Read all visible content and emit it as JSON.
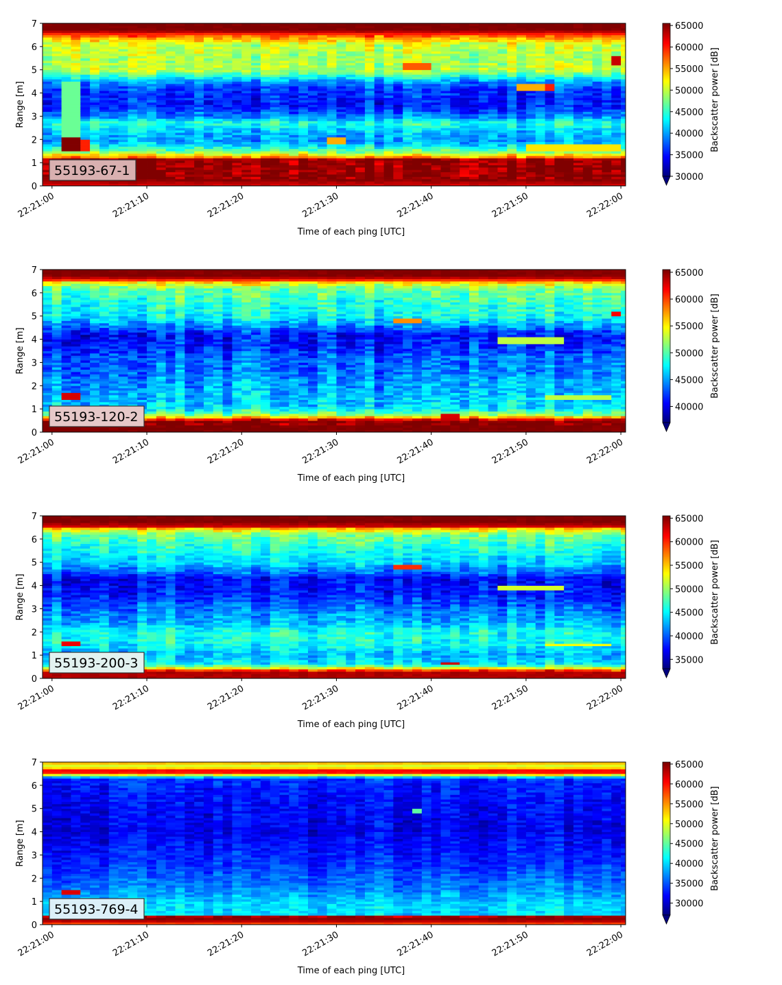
{
  "chart_data": [
    {
      "type": "heatmap",
      "label": "55193-67-1",
      "label_box_color": "#d9b0b0",
      "xlabel": "Time of each ping [UTC]",
      "ylabel": "Range [m]",
      "x_start": "22:21:00",
      "x_end": "22:22:00",
      "x_ticks": [
        "22:21:00",
        "22:21:10",
        "22:21:20",
        "22:21:30",
        "22:21:40",
        "22:21:50",
        "22:22:00"
      ],
      "ylim": [
        0,
        7
      ],
      "y_ticks": [
        0,
        1,
        2,
        3,
        4,
        5,
        6,
        7
      ],
      "colorbar": {
        "label": "Backscatter power [dB]",
        "range": [
          30000,
          65500
        ],
        "ticks": [
          30000,
          35000,
          40000,
          45000,
          50000,
          55000,
          60000,
          65000
        ],
        "extend": "min"
      },
      "profile": [
        [
          0.0,
          62000
        ],
        [
          0.25,
          65000
        ],
        [
          1.15,
          64500
        ],
        [
          1.25,
          56000
        ],
        [
          1.5,
          47000
        ],
        [
          1.9,
          40000
        ],
        [
          2.3,
          41000
        ],
        [
          2.7,
          45000
        ],
        [
          3.0,
          39000
        ],
        [
          3.5,
          35000
        ],
        [
          4.2,
          36500
        ],
        [
          4.5,
          40000
        ],
        [
          5.0,
          50000
        ],
        [
          5.5,
          49000
        ],
        [
          6.1,
          50500
        ],
        [
          6.4,
          56000
        ],
        [
          6.55,
          60000
        ],
        [
          6.7,
          65500
        ],
        [
          7.0,
          65500
        ]
      ],
      "features": [
        {
          "t0": 1.5,
          "t1": 3.0,
          "r0": 1.5,
          "r1": 2.1,
          "value": 65500
        },
        {
          "t0": 3.0,
          "t1": 4.0,
          "r0": 1.5,
          "r1": 2.0,
          "value": 60000
        },
        {
          "t0": 1.5,
          "t1": 3.0,
          "r0": 2.1,
          "r1": 4.5,
          "value": 47000
        },
        {
          "t0": 29.5,
          "t1": 31.5,
          "r0": 1.8,
          "r1": 2.1,
          "value": 55000
        },
        {
          "t0": 37.0,
          "t1": 40.0,
          "r0": 5.0,
          "r1": 5.3,
          "value": 58000
        },
        {
          "t0": 49.0,
          "t1": 53.0,
          "r0": 4.1,
          "r1": 4.4,
          "value": 55000
        },
        {
          "t0": 52.0,
          "t1": 53.0,
          "r0": 4.1,
          "r1": 4.4,
          "value": 60000
        },
        {
          "t0": 59.0,
          "t1": 60.5,
          "r0": 5.2,
          "r1": 5.6,
          "value": 63000
        },
        {
          "t0": 50.0,
          "t1": 60.0,
          "r0": 1.5,
          "r1": 1.8,
          "value": 53000
        }
      ],
      "noise": 4500,
      "seed": 11
    },
    {
      "type": "heatmap",
      "label": "55193-120-2",
      "label_box_color": "#e6c8c8",
      "xlabel": "Time of each ping [UTC]",
      "ylabel": "Range [m]",
      "x_start": "22:21:00",
      "x_end": "22:22:00",
      "x_ticks": [
        "22:21:00",
        "22:21:10",
        "22:21:20",
        "22:21:30",
        "22:21:40",
        "22:21:50",
        "22:22:00"
      ],
      "ylim": [
        0,
        7
      ],
      "y_ticks": [
        0,
        1,
        2,
        3,
        4,
        5,
        6,
        7
      ],
      "colorbar": {
        "label": "Backscatter power [dB]",
        "range": [
          37000,
          65500
        ],
        "ticks": [
          40000,
          45000,
          50000,
          55000,
          60000,
          65000
        ],
        "extend": "min"
      },
      "profile": [
        [
          0.0,
          65500
        ],
        [
          0.5,
          65500
        ],
        [
          0.6,
          59000
        ],
        [
          0.75,
          52000
        ],
        [
          1.0,
          47000
        ],
        [
          1.6,
          46000
        ],
        [
          2.2,
          45000
        ],
        [
          2.6,
          44000
        ],
        [
          3.2,
          43500
        ],
        [
          3.6,
          42000
        ],
        [
          4.2,
          41000
        ],
        [
          4.6,
          45000
        ],
        [
          5.0,
          48000
        ],
        [
          5.6,
          49000
        ],
        [
          6.2,
          51000
        ],
        [
          6.45,
          56000
        ],
        [
          6.6,
          63000
        ],
        [
          6.75,
          65500
        ],
        [
          7.0,
          65500
        ]
      ],
      "features": [
        {
          "t0": 1.5,
          "t1": 3.5,
          "r0": 1.4,
          "r1": 1.7,
          "value": 63000
        },
        {
          "t0": 36.0,
          "t1": 39.0,
          "r0": 4.7,
          "r1": 4.9,
          "value": 58000
        },
        {
          "t0": 47.0,
          "t1": 54.0,
          "r0": 3.8,
          "r1": 4.1,
          "value": 53000
        },
        {
          "t0": 41.5,
          "t1": 43.0,
          "r0": 0.6,
          "r1": 0.8,
          "value": 63000
        },
        {
          "t0": 52.0,
          "t1": 59.0,
          "r0": 1.4,
          "r1": 1.6,
          "value": 53000
        },
        {
          "t0": 59.5,
          "t1": 60.5,
          "r0": 5.0,
          "r1": 5.2,
          "value": 62000
        }
      ],
      "noise": 4000,
      "seed": 23
    },
    {
      "type": "heatmap",
      "label": "55193-200-3",
      "label_box_color": "#e2f2f0",
      "xlabel": "Time of each ping [UTC]",
      "ylabel": "Range [m]",
      "x_start": "22:21:00",
      "x_end": "22:22:00",
      "x_ticks": [
        "22:21:00",
        "22:21:10",
        "22:21:20",
        "22:21:30",
        "22:21:40",
        "22:21:50",
        "22:22:00"
      ],
      "ylim": [
        0,
        7
      ],
      "y_ticks": [
        0,
        1,
        2,
        3,
        4,
        5,
        6,
        7
      ],
      "colorbar": {
        "label": "Backscatter power [dB]",
        "range": [
          33000,
          65500
        ],
        "ticks": [
          35000,
          40000,
          45000,
          50000,
          55000,
          60000,
          65000
        ],
        "extend": "min"
      },
      "profile": [
        [
          0.0,
          64000
        ],
        [
          0.3,
          64000
        ],
        [
          0.4,
          56000
        ],
        [
          0.6,
          45000
        ],
        [
          1.0,
          43000
        ],
        [
          1.6,
          46000
        ],
        [
          2.0,
          46000
        ],
        [
          2.4,
          43000
        ],
        [
          3.0,
          41000
        ],
        [
          3.6,
          38000
        ],
        [
          4.3,
          37000
        ],
        [
          4.6,
          41000
        ],
        [
          5.0,
          44000
        ],
        [
          5.6,
          46000
        ],
        [
          6.2,
          49000
        ],
        [
          6.45,
          55000
        ],
        [
          6.55,
          63000
        ],
        [
          6.75,
          65500
        ],
        [
          7.0,
          65500
        ]
      ],
      "features": [
        {
          "t0": 1.5,
          "t1": 3.5,
          "r0": 1.4,
          "r1": 1.6,
          "value": 62000
        },
        {
          "t0": 36.0,
          "t1": 39.0,
          "r0": 4.7,
          "r1": 4.9,
          "value": 60000
        },
        {
          "t0": 47.0,
          "t1": 54.0,
          "r0": 3.8,
          "r1": 4.0,
          "value": 52000
        },
        {
          "t0": 41.5,
          "t1": 43.0,
          "r0": 0.6,
          "r1": 0.75,
          "value": 63000
        },
        {
          "t0": 52.0,
          "t1": 59.0,
          "r0": 1.4,
          "r1": 1.55,
          "value": 53000
        }
      ],
      "noise": 4000,
      "seed": 37
    },
    {
      "type": "heatmap",
      "label": "55193-769-4",
      "label_box_color": "#dcf0f8",
      "xlabel": "Time of each ping [UTC]",
      "ylabel": "Range [m]",
      "x_start": "22:21:00",
      "x_end": "22:22:00",
      "x_ticks": [
        "22:21:00",
        "22:21:10",
        "22:21:20",
        "22:21:30",
        "22:21:40",
        "22:21:50",
        "22:22:00"
      ],
      "ylim": [
        0,
        7
      ],
      "y_ticks": [
        0,
        1,
        2,
        3,
        4,
        5,
        6,
        7
      ],
      "colorbar": {
        "label": "Backscatter power [dB]",
        "range": [
          27000,
          65500
        ],
        "ticks": [
          30000,
          35000,
          40000,
          45000,
          50000,
          55000,
          60000,
          65000
        ],
        "extend": "min"
      },
      "profile": [
        [
          0.0,
          56000
        ],
        [
          0.2,
          65500
        ],
        [
          0.35,
          64000
        ],
        [
          0.45,
          40000
        ],
        [
          0.9,
          40000
        ],
        [
          1.5,
          37000
        ],
        [
          2.5,
          34000
        ],
        [
          4.0,
          31000
        ],
        [
          5.5,
          32000
        ],
        [
          6.3,
          33500
        ],
        [
          6.45,
          50000
        ],
        [
          6.6,
          65000
        ],
        [
          6.8,
          48000
        ],
        [
          7.0,
          55000
        ]
      ],
      "features": [
        {
          "t0": 1.5,
          "t1": 3.5,
          "r0": 1.3,
          "r1": 1.5,
          "value": 62000
        },
        {
          "t0": 38.0,
          "t1": 39.5,
          "r0": 4.8,
          "r1": 4.95,
          "value": 45000
        }
      ],
      "noise": 3800,
      "seed": 51
    }
  ]
}
